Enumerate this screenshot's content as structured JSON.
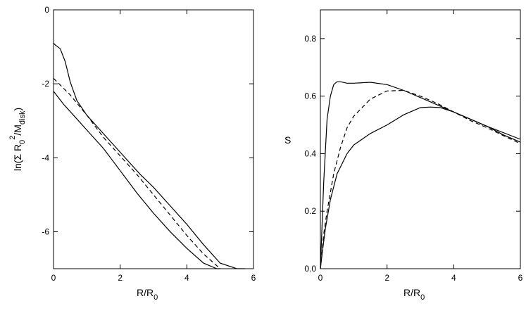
{
  "chart_data": [
    {
      "type": "line",
      "panel": "left",
      "xlabel_main": "R/R",
      "xlabel_sub": "0",
      "ylabel_parts": [
        "ln(Σ R",
        "0",
        "2",
        "/M",
        "disk",
        ")"
      ],
      "xlim": [
        0,
        6
      ],
      "ylim": [
        -7,
        0
      ],
      "xticks": [
        0,
        2,
        4,
        6
      ],
      "yticks": [
        0,
        -2,
        -4,
        -6
      ],
      "series": [
        {
          "style": "solid",
          "x": [
            0,
            0.05,
            0.2,
            0.35,
            0.5,
            0.7,
            1.0,
            1.3,
            1.6,
            1.9,
            2.2,
            2.6,
            3.0,
            3.5,
            4.0,
            4.5,
            5.0,
            5.5,
            5.7,
            5.75
          ],
          "y": [
            -0.9,
            -0.95,
            -1.05,
            -1.4,
            -1.95,
            -2.45,
            -2.85,
            -3.15,
            -3.45,
            -3.75,
            -4.05,
            -4.45,
            -4.8,
            -5.3,
            -5.8,
            -6.35,
            -6.85,
            -7.0,
            -7.0,
            -7.0
          ]
        },
        {
          "style": "solid",
          "x": [
            0,
            0.3,
            0.6,
            1.0,
            1.5,
            2.0,
            2.5,
            3.0,
            3.5,
            4.0,
            4.5,
            4.9,
            5.0
          ],
          "y": [
            -2.2,
            -2.55,
            -2.85,
            -3.25,
            -3.75,
            -4.35,
            -4.95,
            -5.5,
            -6.0,
            -6.45,
            -6.85,
            -7.0,
            -7.0
          ]
        },
        {
          "style": "dashed",
          "x": [
            0,
            0.5,
            1.0,
            1.5,
            2.0,
            2.5,
            3.0,
            3.5,
            4.0,
            4.5,
            5.0
          ],
          "y": [
            -1.85,
            -2.3,
            -2.85,
            -3.45,
            -3.95,
            -4.45,
            -5.0,
            -5.55,
            -6.1,
            -6.6,
            -7.0
          ]
        }
      ]
    },
    {
      "type": "line",
      "panel": "right",
      "xlabel_main": "R/R",
      "xlabel_sub": "0",
      "ylabel": "S",
      "xlim": [
        0,
        6
      ],
      "ylim": [
        0,
        0.9
      ],
      "xticks": [
        0,
        2,
        4,
        6
      ],
      "yticks": [
        0.0,
        0.2,
        0.4,
        0.6,
        0.8
      ],
      "ytick_labels": [
        "0.0",
        "0.2",
        "0.4",
        "0.6",
        "0.8"
      ],
      "series": [
        {
          "style": "solid",
          "x": [
            0,
            0.1,
            0.2,
            0.3,
            0.4,
            0.5,
            0.6,
            0.8,
            1.0,
            1.5,
            2.0,
            2.5,
            3.0,
            3.5,
            4.0,
            5.0,
            6.0
          ],
          "y": [
            0,
            0.3,
            0.52,
            0.6,
            0.64,
            0.65,
            0.65,
            0.645,
            0.645,
            0.648,
            0.64,
            0.62,
            0.595,
            0.57,
            0.545,
            0.495,
            0.45
          ]
        },
        {
          "style": "solid",
          "x": [
            0,
            0.05,
            0.15,
            0.3,
            0.5,
            0.8,
            1.0,
            1.5,
            2.0,
            2.5,
            3.0,
            3.3,
            3.6,
            4.0,
            4.5,
            5.0,
            5.5,
            6.0
          ],
          "y": [
            0,
            0.05,
            0.14,
            0.24,
            0.33,
            0.4,
            0.43,
            0.47,
            0.5,
            0.535,
            0.56,
            0.562,
            0.56,
            0.545,
            0.52,
            0.495,
            0.465,
            0.44
          ]
        },
        {
          "style": "dashed",
          "x": [
            0,
            0.1,
            0.2,
            0.4,
            0.6,
            0.8,
            1.0,
            1.5,
            2.0,
            2.5,
            3.0,
            3.5,
            4.0,
            4.5,
            5.0,
            5.5,
            6.0
          ],
          "y": [
            0,
            0.12,
            0.2,
            0.33,
            0.42,
            0.49,
            0.53,
            0.59,
            0.618,
            0.62,
            0.6,
            0.575,
            0.545,
            0.515,
            0.49,
            0.462,
            0.435
          ]
        }
      ]
    }
  ]
}
